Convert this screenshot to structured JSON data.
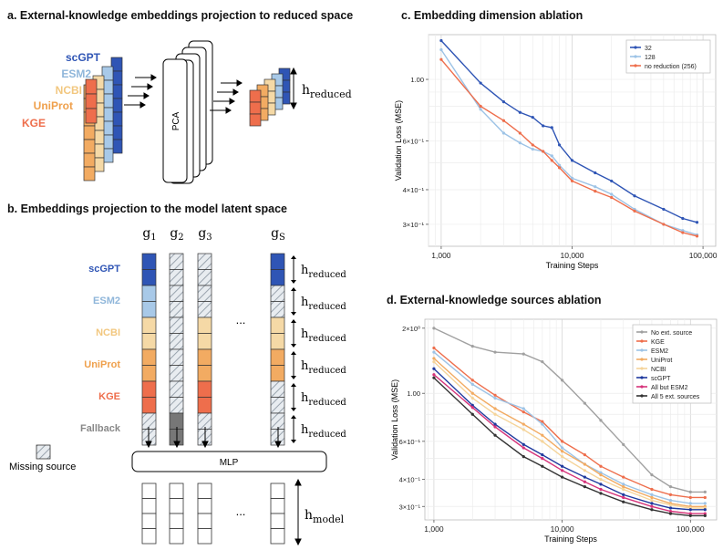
{
  "panel_a": {
    "title": "a. External-knowledge embeddings projection to reduced space",
    "sources": [
      {
        "label": "scGPT",
        "color": "#2f55b5"
      },
      {
        "label": "ESM2",
        "color": "#a8c9e8"
      },
      {
        "label": "NCBI",
        "color": "#f5d9a6"
      },
      {
        "label": "UniProt",
        "color": "#f2ab62"
      },
      {
        "label": "KGE",
        "color": "#ee6e4c"
      }
    ],
    "pca_label": "PCA",
    "h_main": "h",
    "h_sub": "reduced"
  },
  "panel_b": {
    "title": "b. Embeddings projection to the model latent space",
    "gene_labels": [
      {
        "main": "g",
        "sub": "1"
      },
      {
        "main": "g",
        "sub": "2"
      },
      {
        "main": "g",
        "sub": "3"
      },
      {
        "main": "g",
        "sub": "S"
      }
    ],
    "row_labels": [
      "scGPT",
      "ESM2",
      "NCBI",
      "UniProt",
      "KGE",
      "Fallback"
    ],
    "row_colors": [
      "#2f55b5",
      "#a8c9e8",
      "#f5d9a6",
      "#f2ab62",
      "#ee6e4c",
      "#777777"
    ],
    "row_label_colors": [
      "#2f55b5",
      "#8fb6da",
      "#f2c77f",
      "#efa04c",
      "#ee6e4c",
      "#888888"
    ],
    "ellipsis": "...",
    "mlp_label": "MLP",
    "missing_label": "Missing source",
    "h_main": "h",
    "h_reduced_sub": "reduced",
    "h_model_sub": "model"
  },
  "chart_data": [
    {
      "id": "c",
      "type": "line",
      "title": "c. Embedding dimension ablation",
      "xlabel": "Training Steps",
      "ylabel": "Validation Loss (MSE)",
      "xscale": "log",
      "yscale": "log",
      "xlim": [
        800,
        125000
      ],
      "ylim": [
        0.25,
        1.45
      ],
      "xticks": [
        {
          "v": 1000,
          "label": "1,000"
        },
        {
          "v": 10000,
          "label": "10,000"
        },
        {
          "v": 100000,
          "label": "100,000"
        }
      ],
      "yticks": [
        {
          "v": 1.0,
          "label": "1.00"
        },
        {
          "v": 0.6,
          "label": "6×10⁻¹"
        },
        {
          "v": 0.4,
          "label": "4×10⁻¹"
        },
        {
          "v": 0.3,
          "label": "3×10⁻¹"
        }
      ],
      "legend_position": "top-right",
      "series": [
        {
          "name": "32",
          "color": "#2f55b5",
          "x": [
            1000,
            2000,
            3000,
            4000,
            5000,
            6000,
            7000,
            8000,
            10000,
            15000,
            20000,
            30000,
            50000,
            70000,
            90000
          ],
          "y": [
            1.38,
            0.97,
            0.83,
            0.76,
            0.73,
            0.68,
            0.67,
            0.58,
            0.51,
            0.46,
            0.43,
            0.38,
            0.34,
            0.315,
            0.305
          ]
        },
        {
          "name": "128",
          "color": "#9dc3e6",
          "x": [
            1000,
            2000,
            3000,
            4000,
            5000,
            6000,
            7000,
            8000,
            10000,
            15000,
            20000,
            30000,
            50000,
            70000,
            90000
          ],
          "y": [
            1.28,
            0.78,
            0.64,
            0.59,
            0.56,
            0.55,
            0.53,
            0.49,
            0.44,
            0.41,
            0.385,
            0.34,
            0.3,
            0.285,
            0.275
          ]
        },
        {
          "name": "no reduction (256)",
          "color": "#ee6e4c",
          "x": [
            1000,
            2000,
            3000,
            4000,
            5000,
            6000,
            7000,
            8000,
            10000,
            15000,
            20000,
            30000,
            50000,
            70000,
            90000
          ],
          "y": [
            1.18,
            0.8,
            0.71,
            0.64,
            0.58,
            0.55,
            0.51,
            0.48,
            0.43,
            0.395,
            0.375,
            0.335,
            0.3,
            0.28,
            0.272
          ]
        }
      ]
    },
    {
      "id": "d",
      "type": "line",
      "title": "d. External-knowledge sources ablation",
      "xlabel": "Training Steps",
      "ylabel": "Validation Loss (MSE)",
      "xscale": "log",
      "yscale": "log",
      "xlim": [
        850,
        160000
      ],
      "ylim": [
        0.26,
        2.2
      ],
      "xticks": [
        {
          "v": 1000,
          "label": "1,000"
        },
        {
          "v": 10000,
          "label": "10,000"
        },
        {
          "v": 100000,
          "label": "100,000"
        }
      ],
      "yticks": [
        {
          "v": 2.0,
          "label": "2×10⁰"
        },
        {
          "v": 1.0,
          "label": "1.00"
        },
        {
          "v": 0.6,
          "label": "6×10⁻¹"
        },
        {
          "v": 0.4,
          "label": "4×10⁻¹"
        },
        {
          "v": 0.3,
          "label": "3×10⁻¹"
        }
      ],
      "legend_position": "top-right",
      "series": [
        {
          "name": "No ext. source",
          "color": "#a0a0a0",
          "x": [
            1000,
            2000,
            3000,
            5000,
            7000,
            10000,
            15000,
            20000,
            30000,
            50000,
            70000,
            100000,
            130000
          ],
          "y": [
            2.0,
            1.65,
            1.55,
            1.52,
            1.4,
            1.15,
            0.9,
            0.75,
            0.58,
            0.42,
            0.37,
            0.35,
            0.35
          ]
        },
        {
          "name": "KGE",
          "color": "#ee6e4c",
          "x": [
            1000,
            2000,
            3000,
            5000,
            7000,
            10000,
            15000,
            20000,
            30000,
            50000,
            70000,
            100000,
            130000
          ],
          "y": [
            1.62,
            1.15,
            0.98,
            0.82,
            0.74,
            0.6,
            0.52,
            0.46,
            0.41,
            0.36,
            0.34,
            0.33,
            0.33
          ]
        },
        {
          "name": "ESM2",
          "color": "#9dc3e6",
          "x": [
            1000,
            2000,
            3000,
            5000,
            7000,
            10000,
            15000,
            20000,
            30000,
            50000,
            70000,
            100000,
            130000
          ],
          "y": [
            1.55,
            1.1,
            0.95,
            0.85,
            0.72,
            0.56,
            0.47,
            0.43,
            0.38,
            0.34,
            0.32,
            0.31,
            0.31
          ]
        },
        {
          "name": "UniProt",
          "color": "#f2ab62",
          "x": [
            1000,
            2000,
            3000,
            5000,
            7000,
            10000,
            15000,
            20000,
            30000,
            50000,
            70000,
            100000,
            130000
          ],
          "y": [
            1.45,
            1.0,
            0.85,
            0.72,
            0.64,
            0.54,
            0.47,
            0.42,
            0.37,
            0.33,
            0.31,
            0.3,
            0.3
          ]
        },
        {
          "name": "NCBI",
          "color": "#f5d49a",
          "x": [
            1000,
            2000,
            3000,
            5000,
            7000,
            10000,
            15000,
            20000,
            30000,
            50000,
            70000,
            100000,
            130000
          ],
          "y": [
            1.4,
            0.95,
            0.8,
            0.68,
            0.6,
            0.51,
            0.44,
            0.4,
            0.36,
            0.32,
            0.305,
            0.295,
            0.295
          ]
        },
        {
          "name": "scGPT",
          "color": "#1f3a9e",
          "x": [
            1000,
            2000,
            3000,
            5000,
            7000,
            10000,
            15000,
            20000,
            30000,
            50000,
            70000,
            100000,
            130000
          ],
          "y": [
            1.3,
            0.88,
            0.72,
            0.58,
            0.52,
            0.46,
            0.41,
            0.38,
            0.34,
            0.31,
            0.295,
            0.29,
            0.29
          ]
        },
        {
          "name": "All but ESM2",
          "color": "#d6337a",
          "x": [
            1000,
            2000,
            3000,
            5000,
            7000,
            10000,
            15000,
            20000,
            30000,
            50000,
            70000,
            100000,
            130000
          ],
          "y": [
            1.22,
            0.86,
            0.7,
            0.56,
            0.5,
            0.44,
            0.39,
            0.36,
            0.33,
            0.3,
            0.285,
            0.278,
            0.278
          ]
        },
        {
          "name": "All 5 ext. sources",
          "color": "#333333",
          "x": [
            1000,
            2000,
            3000,
            5000,
            7000,
            10000,
            15000,
            20000,
            30000,
            50000,
            70000,
            100000,
            130000
          ],
          "y": [
            1.18,
            0.8,
            0.64,
            0.51,
            0.46,
            0.41,
            0.37,
            0.345,
            0.315,
            0.29,
            0.278,
            0.272,
            0.272
          ]
        }
      ]
    }
  ]
}
